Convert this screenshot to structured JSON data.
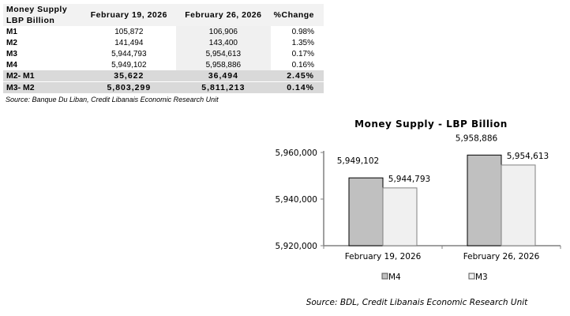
{
  "table": {
    "header": [
      "Money Supply",
      "LBP Billion",
      "February 19, 2026",
      "February 26, 2026",
      "%Change"
    ],
    "rows": [
      {
        "label": "M1",
        "v1": "105,872",
        "v2": "106,906",
        "chg": "0.98%"
      },
      {
        "label": "M2",
        "v1": "141,494",
        "v2": "143,400",
        "chg": "1.35%"
      },
      {
        "label": "M3",
        "v1": "5,944,793",
        "v2": "5,954,613",
        "chg": "0.17%"
      },
      {
        "label": "M4",
        "v1": "5,949,102",
        "v2": "5,958,886",
        "chg": "0.16%"
      }
    ],
    "diff_rows": [
      {
        "label": "M2- M1",
        "v1": "35,622",
        "v2": "36,494",
        "chg": "2.45%"
      },
      {
        "label": "M3- M2",
        "v1": "5,803,299",
        "v2": "5,811,213",
        "chg": "0.14%"
      }
    ],
    "source": "Source: Banque Du Liban, Credit Libanais Economic Research Unit"
  },
  "chart_data": {
    "type": "bar",
    "title": "Money Supply - LBP Billion",
    "categories": [
      "February 19, 2026",
      "February 26, 2026"
    ],
    "series": [
      {
        "name": "M4",
        "values": [
          5949102,
          5958886
        ],
        "labels": [
          "5,949,102",
          "5,958,886"
        ],
        "color": "#c0c0c0"
      },
      {
        "name": "M3",
        "values": [
          5944793,
          5954613
        ],
        "labels": [
          "5,944,793",
          "5,954,613"
        ],
        "color": "#f0f0f0"
      }
    ],
    "ylim": [
      5920000,
      5960000
    ],
    "yticks": [
      5920000,
      5940000,
      5960000
    ],
    "ytick_labels": [
      "5,920,000",
      "5,940,000",
      "5,960,000"
    ],
    "legend": "bottom",
    "source": "Source: BDL, Credit Libanais Economic Research Unit"
  }
}
